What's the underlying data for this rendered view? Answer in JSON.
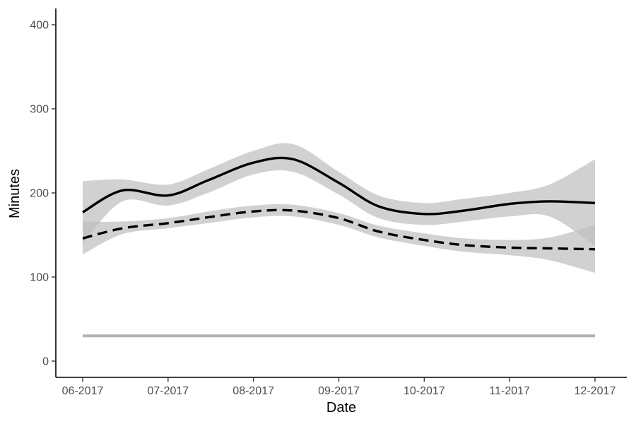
{
  "chart_data": {
    "type": "line",
    "title": "",
    "xlabel": "Date",
    "ylabel": "Minutes",
    "x_ticks": [
      "06-2017",
      "07-2017",
      "08-2017",
      "09-2017",
      "10-2017",
      "11-2017",
      "12-2017"
    ],
    "y_ticks": [
      0,
      100,
      200,
      300,
      400
    ],
    "ylim": [
      -20,
      420
    ],
    "grid": false,
    "legend": "none",
    "series": [
      {
        "style": "solid",
        "color": "#000000",
        "x": [
          "06-2017",
          "06-15-2017",
          "07-2017",
          "07-15-2017",
          "08-2017",
          "08-15-2017",
          "09-2017",
          "09-15-2017",
          "10-2017",
          "10-15-2017",
          "11-2017",
          "11-15-2017",
          "12-2017"
        ],
        "y": [
          177,
          203,
          197,
          215,
          236,
          240,
          212,
          184,
          175,
          179,
          187,
          190,
          188
        ],
        "band_lower": [
          140,
          190,
          185,
          200,
          222,
          225,
          198,
          170,
          162,
          166,
          172,
          172,
          137
        ],
        "band_upper": [
          214,
          216,
          210,
          228,
          250,
          258,
          225,
          197,
          188,
          193,
          200,
          210,
          240
        ],
        "band_color": "#bfbfbf"
      },
      {
        "style": "dashed",
        "color": "#000000",
        "x": [
          "06-2017",
          "06-15-2017",
          "07-2017",
          "07-15-2017",
          "08-2017",
          "08-15-2017",
          "09-2017",
          "09-15-2017",
          "10-2017",
          "10-15-2017",
          "11-2017",
          "11-15-2017",
          "12-2017"
        ],
        "y": [
          146,
          158,
          164,
          171,
          178,
          179,
          170,
          154,
          144,
          138,
          135,
          134,
          133
        ],
        "band_lower": [
          127,
          151,
          158,
          164,
          171,
          172,
          162,
          147,
          137,
          130,
          126,
          120,
          105
        ],
        "band_upper": [
          166,
          166,
          170,
          178,
          185,
          186,
          176,
          161,
          152,
          146,
          144,
          147,
          162
        ],
        "band_color": "#bfbfbf"
      },
      {
        "style": "solid",
        "color": "#b3b3b3",
        "x": [
          "06-2017",
          "12-2017"
        ],
        "y": [
          30,
          30
        ]
      }
    ]
  }
}
